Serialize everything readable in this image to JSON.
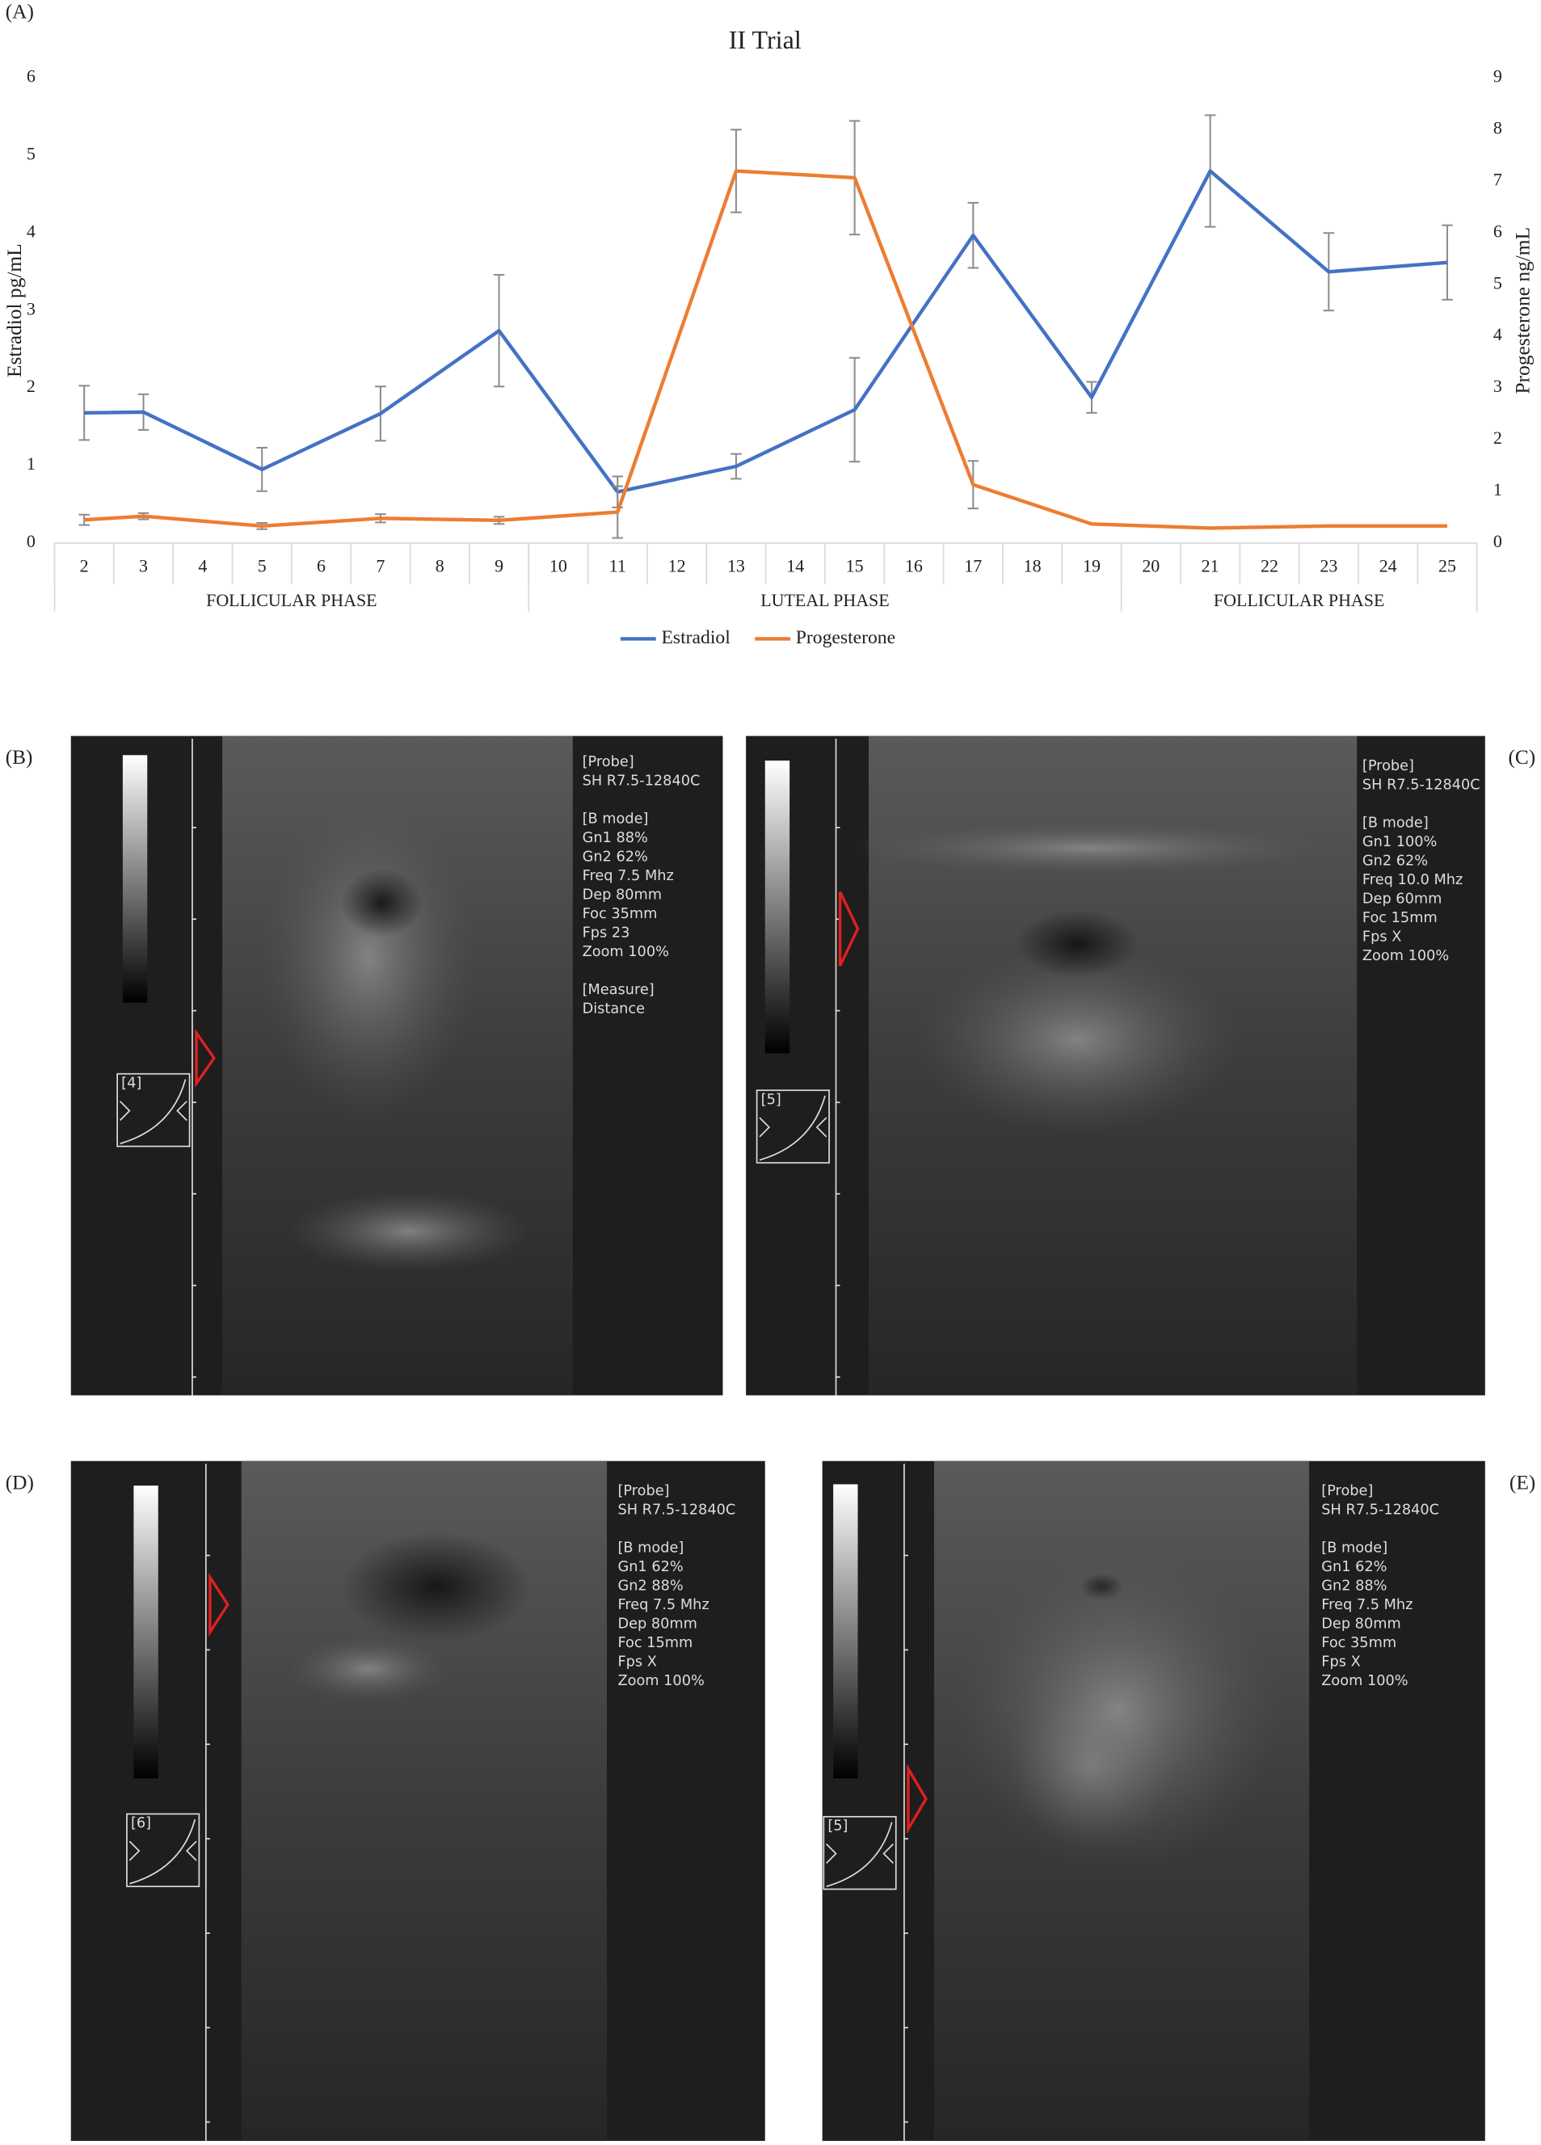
{
  "chart_data": {
    "type": "line",
    "panel_label": "(A)",
    "title": "II Trial",
    "y_label": "Estradiol pg/mL",
    "y2_label": "Progesterone ng/mL",
    "x": [
      2,
      3,
      5,
      7,
      9,
      11,
      13,
      15,
      17,
      19,
      21,
      23,
      25
    ],
    "xlim": [
      1.5,
      25.5
    ],
    "xticks": [
      2,
      3,
      4,
      5,
      6,
      7,
      8,
      9,
      10,
      11,
      12,
      13,
      14,
      15,
      16,
      17,
      18,
      19,
      20,
      21,
      22,
      23,
      24,
      25
    ],
    "ylim": [
      0,
      6
    ],
    "yticks": [
      0,
      1,
      2,
      3,
      4,
      5,
      6
    ],
    "y2lim": [
      0,
      9
    ],
    "y2ticks": [
      0,
      1,
      2,
      3,
      4,
      5,
      6,
      7,
      8,
      9
    ],
    "groups": [
      {
        "label": "FOLLICULAR PHASE",
        "start": 2,
        "end": 9
      },
      {
        "label": "LUTEAL PHASE",
        "start": 10,
        "end": 19
      },
      {
        "label": "FOLLICULAR PHASE",
        "start": 20,
        "end": 25
      }
    ],
    "legend": "bottom",
    "series": [
      {
        "name": "Estradiol",
        "color": "#4472c4",
        "values": [
          1.68,
          1.69,
          0.95,
          1.67,
          2.74,
          0.66,
          0.99,
          1.72,
          3.97,
          1.88,
          4.8,
          3.5,
          3.62
        ],
        "error": [
          0.35,
          0.23,
          0.28,
          0.35,
          0.72,
          0.2,
          0.16,
          0.67,
          0.42,
          0.2,
          0.72,
          0.5,
          0.48
        ]
      },
      {
        "name": "Progesterone",
        "color": "#ed7d31",
        "axis": "y2",
        "values": [
          0.45,
          0.52,
          0.33,
          0.48,
          0.44,
          0.6,
          7.2,
          7.07,
          1.13,
          0.37,
          0.29,
          0.33,
          0.33
        ],
        "error": [
          0.1,
          0.06,
          0.06,
          0.08,
          0.07,
          0.5,
          0.8,
          1.1,
          0.46,
          null,
          null,
          null,
          null
        ]
      }
    ]
  },
  "panels": [
    {
      "label": "(B)",
      "probe_box": "[4]",
      "blocks": [
        [
          "[Probe]",
          "SH R7.5-12840C"
        ],
        [
          "[B mode]",
          "Gn1 88%",
          "Gn2 62%",
          "Freq 7.5 Mhz",
          "Dep 80mm",
          "Foc 35mm",
          "Fps 23",
          "Zoom 100%"
        ],
        [
          "[Measure]",
          "Distance"
        ]
      ]
    },
    {
      "label": "(C)",
      "probe_box": "[5]",
      "blocks": [
        [
          "[Probe]",
          "SH R7.5-12840C"
        ],
        [
          "[B mode]",
          "Gn1 100%",
          "Gn2 62%",
          "Freq 10.0 Mhz",
          "Dep 60mm",
          "Foc 15mm",
          "Fps X",
          "Zoom 100%"
        ]
      ]
    },
    {
      "label": "(D)",
      "probe_box": "[6]",
      "blocks": [
        [
          "[Probe]",
          "SH R7.5-12840C"
        ],
        [
          "[B mode]",
          "Gn1 62%",
          "Gn2 88%",
          "Freq 7.5 Mhz",
          "Dep 80mm",
          "Foc 15mm",
          "Fps X",
          "Zoom 100%"
        ]
      ]
    },
    {
      "label": "(E)",
      "probe_box": "[5]",
      "blocks": [
        [
          "[Probe]",
          "SH R7.5-12840C"
        ],
        [
          "[B mode]",
          "Gn1 62%",
          "Gn2 88%",
          "Freq 7.5 Mhz",
          "Dep 80mm",
          "Foc 35mm",
          "Fps X",
          "Zoom 100%"
        ]
      ]
    }
  ]
}
